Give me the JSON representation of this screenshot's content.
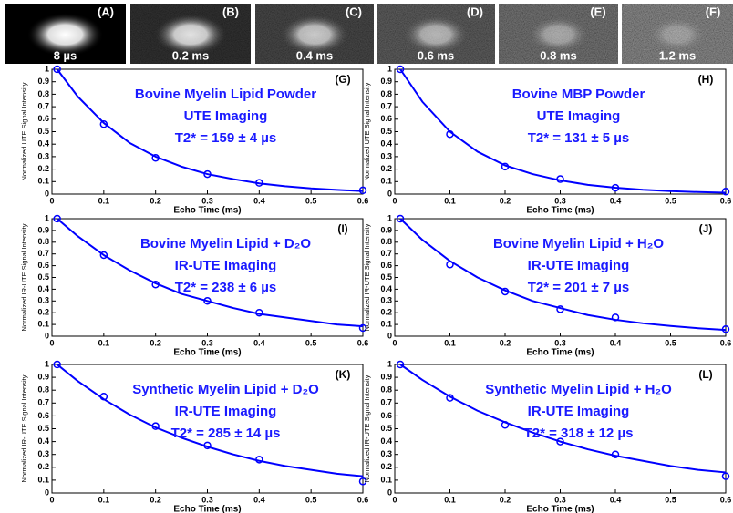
{
  "images": [
    {
      "label": "(A)",
      "time": "8 µs"
    },
    {
      "label": "(B)",
      "time": "0.2 ms"
    },
    {
      "label": "(C)",
      "time": "0.4 ms"
    },
    {
      "label": "(D)",
      "time": "0.6 ms"
    },
    {
      "label": "(E)",
      "time": "0.8 ms"
    },
    {
      "label": "(F)",
      "time": "1.2 ms"
    }
  ],
  "chart_data": [
    {
      "type": "line",
      "panel": "(G)",
      "annotation": [
        "Bovine Myelin Lipid Powder",
        "UTE Imaging",
        "T2* = 159 ± 4 µs"
      ],
      "xlabel": "Echo Time (ms)",
      "ylabel": "Normalized UTE Signal Intensity",
      "xlim": [
        0,
        0.6
      ],
      "xticks": [
        0,
        0.1,
        0.2,
        0.3,
        0.4,
        0.5,
        0.6
      ],
      "ylim": [
        0,
        1
      ],
      "yticks": [
        0,
        0.1,
        0.2,
        0.3,
        0.4,
        0.5,
        0.6,
        0.7,
        0.8,
        0.9,
        1
      ],
      "series": [
        {
          "color": "#0000ff",
          "marker": "circle",
          "x": [
            0.01,
            0.1,
            0.2,
            0.3,
            0.4,
            0.6
          ],
          "values": [
            1,
            0.56,
            0.29,
            0.16,
            0.09,
            0.03
          ]
        },
        {
          "color": "#0000ff",
          "marker": "none",
          "x": [
            0.01,
            0.05,
            0.1,
            0.15,
            0.2,
            0.25,
            0.3,
            0.35,
            0.4,
            0.45,
            0.5,
            0.55,
            0.6
          ],
          "values": [
            1,
            0.78,
            0.57,
            0.41,
            0.3,
            0.22,
            0.16,
            0.12,
            0.086,
            0.063,
            0.046,
            0.034,
            0.024
          ]
        }
      ]
    },
    {
      "type": "line",
      "panel": "(H)",
      "annotation": [
        "Bovine MBP Powder",
        "UTE Imaging",
        "T2* = 131 ± 5 µs"
      ],
      "xlabel": "Echo Time (ms)",
      "ylabel": "Normalized UTE Signal Intensity",
      "xlim": [
        0,
        0.6
      ],
      "xticks": [
        0,
        0.1,
        0.2,
        0.3,
        0.4,
        0.5,
        0.6
      ],
      "ylim": [
        0,
        1
      ],
      "yticks": [
        0,
        0.1,
        0.2,
        0.3,
        0.4,
        0.5,
        0.6,
        0.7,
        0.8,
        0.9,
        1
      ],
      "series": [
        {
          "color": "#0000ff",
          "marker": "circle",
          "x": [
            0.01,
            0.1,
            0.2,
            0.3,
            0.4,
            0.6
          ],
          "values": [
            1,
            0.48,
            0.22,
            0.12,
            0.05,
            0.02
          ]
        },
        {
          "color": "#0000ff",
          "marker": "none",
          "x": [
            0.01,
            0.05,
            0.1,
            0.15,
            0.2,
            0.25,
            0.3,
            0.35,
            0.4,
            0.45,
            0.5,
            0.55,
            0.6
          ],
          "values": [
            1,
            0.74,
            0.5,
            0.34,
            0.23,
            0.16,
            0.11,
            0.074,
            0.051,
            0.035,
            0.024,
            0.016,
            0.011
          ]
        }
      ]
    },
    {
      "type": "line",
      "panel": "(I)",
      "annotation": [
        "Bovine Myelin Lipid + D₂O",
        "IR-UTE Imaging",
        "T2* = 238 ± 6 µs"
      ],
      "xlabel": "Echo Time (ms)",
      "ylabel": "Normalized IR-UTE Signal Intensity",
      "xlim": [
        0,
        0.6
      ],
      "xticks": [
        0,
        0.1,
        0.2,
        0.3,
        0.4,
        0.5,
        0.6
      ],
      "ylim": [
        0,
        1
      ],
      "yticks": [
        0,
        0.1,
        0.2,
        0.3,
        0.4,
        0.5,
        0.6,
        0.7,
        0.8,
        0.9,
        1
      ],
      "series": [
        {
          "color": "#0000ff",
          "marker": "circle",
          "x": [
            0.01,
            0.1,
            0.2,
            0.3,
            0.4,
            0.6
          ],
          "values": [
            1,
            0.69,
            0.44,
            0.3,
            0.2,
            0.07
          ]
        },
        {
          "color": "#0000ff",
          "marker": "none",
          "x": [
            0.01,
            0.05,
            0.1,
            0.15,
            0.2,
            0.25,
            0.3,
            0.35,
            0.4,
            0.45,
            0.5,
            0.55,
            0.6
          ],
          "values": [
            1,
            0.85,
            0.69,
            0.56,
            0.45,
            0.36,
            0.3,
            0.24,
            0.19,
            0.16,
            0.13,
            0.1,
            0.084
          ]
        }
      ]
    },
    {
      "type": "line",
      "panel": "(J)",
      "annotation": [
        "Bovine Myelin Lipid + H₂O",
        "IR-UTE Imaging",
        "T2* = 201 ± 7 µs"
      ],
      "xlabel": "Echo Time (ms)",
      "ylabel": "Normalized IR-UTE Signal Intensity",
      "xlim": [
        0,
        0.6
      ],
      "xticks": [
        0,
        0.1,
        0.2,
        0.3,
        0.4,
        0.5,
        0.6
      ],
      "ylim": [
        0,
        1
      ],
      "yticks": [
        0,
        0.1,
        0.2,
        0.3,
        0.4,
        0.5,
        0.6,
        0.7,
        0.8,
        0.9,
        1
      ],
      "series": [
        {
          "color": "#0000ff",
          "marker": "circle",
          "x": [
            0.01,
            0.1,
            0.2,
            0.3,
            0.4,
            0.6
          ],
          "values": [
            1,
            0.61,
            0.38,
            0.23,
            0.16,
            0.06
          ]
        },
        {
          "color": "#0000ff",
          "marker": "none",
          "x": [
            0.01,
            0.05,
            0.1,
            0.15,
            0.2,
            0.25,
            0.3,
            0.35,
            0.4,
            0.45,
            0.5,
            0.55,
            0.6
          ],
          "values": [
            1,
            0.82,
            0.64,
            0.5,
            0.39,
            0.3,
            0.24,
            0.18,
            0.14,
            0.11,
            0.087,
            0.068,
            0.053
          ]
        }
      ]
    },
    {
      "type": "line",
      "panel": "(K)",
      "annotation": [
        "Synthetic Myelin Lipid + D₂O",
        "IR-UTE Imaging",
        "T2* = 285 ± 14 µs"
      ],
      "xlabel": "Echo Time (ms)",
      "ylabel": "Normalized IR-UTE Signal Intensity",
      "xlim": [
        0,
        0.6
      ],
      "xticks": [
        0,
        0.1,
        0.2,
        0.3,
        0.4,
        0.5,
        0.6
      ],
      "ylim": [
        0,
        1
      ],
      "yticks": [
        0,
        0.1,
        0.2,
        0.3,
        0.4,
        0.5,
        0.6,
        0.7,
        0.8,
        0.9,
        1
      ],
      "series": [
        {
          "color": "#0000ff",
          "marker": "circle",
          "x": [
            0.01,
            0.1,
            0.2,
            0.3,
            0.4,
            0.6
          ],
          "values": [
            1,
            0.75,
            0.52,
            0.37,
            0.26,
            0.09
          ]
        },
        {
          "color": "#0000ff",
          "marker": "none",
          "x": [
            0.01,
            0.05,
            0.1,
            0.15,
            0.2,
            0.25,
            0.3,
            0.35,
            0.4,
            0.45,
            0.5,
            0.55,
            0.6
          ],
          "values": [
            1,
            0.87,
            0.73,
            0.61,
            0.51,
            0.43,
            0.36,
            0.3,
            0.25,
            0.21,
            0.18,
            0.15,
            0.13
          ]
        }
      ]
    },
    {
      "type": "line",
      "panel": "(L)",
      "annotation": [
        "Synthetic Myelin Lipid + H₂O",
        "IR-UTE Imaging",
        "T2* = 318 ± 12 µs"
      ],
      "xlabel": "Echo Time (ms)",
      "ylabel": "Normalized IR-UTE Signal Intensity",
      "xlim": [
        0,
        0.6
      ],
      "xticks": [
        0,
        0.1,
        0.2,
        0.3,
        0.4,
        0.5,
        0.6
      ],
      "ylim": [
        0,
        1
      ],
      "yticks": [
        0,
        0.1,
        0.2,
        0.3,
        0.4,
        0.5,
        0.6,
        0.7,
        0.8,
        0.9,
        1
      ],
      "series": [
        {
          "color": "#0000ff",
          "marker": "circle",
          "x": [
            0.01,
            0.1,
            0.2,
            0.3,
            0.4,
            0.6
          ],
          "values": [
            1,
            0.74,
            0.53,
            0.4,
            0.3,
            0.13
          ]
        },
        {
          "color": "#0000ff",
          "marker": "none",
          "x": [
            0.01,
            0.05,
            0.1,
            0.15,
            0.2,
            0.25,
            0.3,
            0.35,
            0.4,
            0.45,
            0.5,
            0.55,
            0.6
          ],
          "values": [
            1,
            0.88,
            0.75,
            0.64,
            0.55,
            0.47,
            0.4,
            0.34,
            0.29,
            0.25,
            0.21,
            0.18,
            0.16
          ]
        }
      ]
    }
  ]
}
